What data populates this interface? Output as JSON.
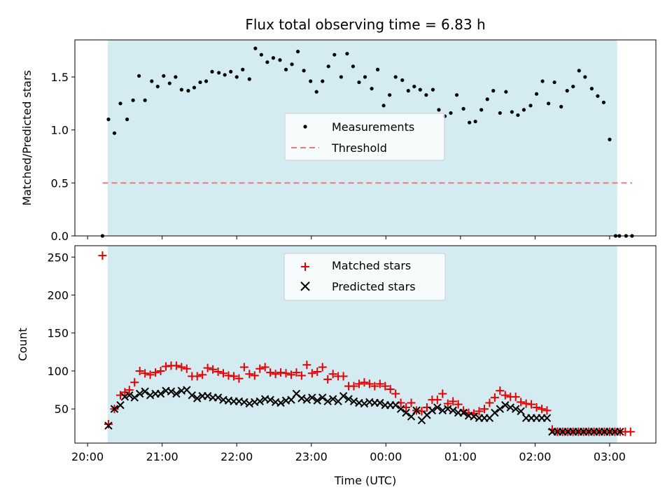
{
  "chart_data": {
    "title": "Flux total observing time = 6.83 h",
    "x_axis": {
      "label": "Time (UTC)",
      "tick_labels": [
        "20:00",
        "21:00",
        "22:00",
        "23:00",
        "00:00",
        "01:00",
        "02:00",
        "03:00"
      ],
      "tick_hours": [
        0,
        1,
        2,
        3,
        4,
        5,
        6,
        7
      ],
      "range_hours_after_20_00": [
        -0.17,
        7.62
      ]
    },
    "shaded_interval_hours_after_20_00": [
      0.27,
      7.1
    ],
    "colors": {
      "shade": "#d3ebf1",
      "measurements": "#000000",
      "threshold": "#f07878",
      "matched": "#e60000",
      "predicted": "#000000"
    },
    "panels": [
      {
        "type": "scatter",
        "ylabel": "Matched/Predicted stars",
        "ylim": [
          0,
          1.85
        ],
        "y_ticks": [
          0.0,
          0.5,
          1.0,
          1.5
        ],
        "y_tick_labels": [
          "0.0",
          "0.5",
          "1.0",
          "1.5"
        ],
        "legend_placement": "center",
        "legend": [
          {
            "label": "Measurements",
            "marker": "dot"
          },
          {
            "label": "Threshold",
            "marker": "dashed-line"
          }
        ],
        "threshold": {
          "value": 0.5,
          "x_range_hours": [
            0.2,
            7.3
          ]
        },
        "series": [
          {
            "name": "Measurements",
            "marker": "dot",
            "x_hours": [
              0.2,
              0.28,
              0.36,
              0.44,
              0.53,
              0.61,
              0.69,
              0.77,
              0.86,
              0.94,
              1.02,
              1.1,
              1.18,
              1.26,
              1.35,
              1.43,
              1.51,
              1.59,
              1.67,
              1.76,
              1.84,
              1.92,
              2.0,
              2.08,
              2.17,
              2.25,
              2.33,
              2.41,
              2.49,
              2.58,
              2.66,
              2.74,
              2.82,
              2.9,
              2.99,
              3.07,
              3.15,
              3.23,
              3.31,
              3.4,
              3.48,
              3.56,
              3.64,
              3.72,
              3.81,
              3.89,
              3.97,
              4.05,
              4.13,
              4.22,
              4.3,
              4.38,
              4.46,
              4.54,
              4.63,
              4.71,
              4.79,
              4.87,
              4.95,
              5.04,
              5.12,
              5.2,
              5.28,
              5.36,
              5.44,
              5.53,
              5.61,
              5.69,
              5.77,
              5.85,
              5.94,
              6.02,
              6.1,
              6.18,
              6.26,
              6.35,
              6.43,
              6.51,
              6.59,
              6.67,
              6.76,
              6.84,
              6.92,
              7.0,
              7.08,
              7.13,
              7.22,
              7.3
            ],
            "y": [
              0.0,
              1.1,
              0.97,
              1.25,
              1.1,
              1.28,
              1.51,
              1.28,
              1.46,
              1.41,
              1.51,
              1.44,
              1.5,
              1.38,
              1.37,
              1.4,
              1.45,
              1.46,
              1.55,
              1.54,
              1.52,
              1.55,
              1.5,
              1.57,
              1.48,
              1.77,
              1.71,
              1.64,
              1.68,
              1.66,
              1.57,
              1.62,
              1.74,
              1.56,
              1.46,
              1.36,
              1.46,
              1.6,
              1.71,
              1.5,
              1.72,
              1.6,
              1.45,
              1.5,
              1.39,
              1.57,
              1.23,
              1.33,
              1.5,
              1.47,
              1.37,
              1.41,
              1.38,
              1.33,
              1.38,
              1.19,
              1.13,
              1.16,
              1.33,
              1.2,
              1.07,
              1.08,
              1.19,
              1.29,
              1.37,
              1.16,
              1.36,
              1.17,
              1.14,
              1.19,
              1.23,
              1.34,
              1.46,
              1.25,
              1.45,
              1.22,
              1.37,
              1.41,
              1.56,
              1.5,
              1.39,
              1.32,
              1.26,
              0.91,
              0.0,
              0.0,
              0.0,
              0.0
            ]
          }
        ]
      },
      {
        "type": "scatter",
        "ylabel": "Count",
        "ylim": [
          5,
          265
        ],
        "y_ticks": [
          50,
          100,
          150,
          200,
          250
        ],
        "y_tick_labels": [
          "50",
          "100",
          "150",
          "200",
          "250"
        ],
        "legend_placement": "upper center",
        "legend": [
          {
            "label": "Matched stars",
            "marker": "plus"
          },
          {
            "label": "Predicted stars",
            "marker": "x"
          }
        ],
        "series": [
          {
            "name": "Matched stars",
            "marker": "plus",
            "x_hours": [
              0.2,
              0.28,
              0.36,
              0.44,
              0.5,
              0.56,
              0.63,
              0.7,
              0.77,
              0.84,
              0.91,
              0.98,
              1.05,
              1.12,
              1.19,
              1.26,
              1.33,
              1.4,
              1.47,
              1.54,
              1.61,
              1.68,
              1.75,
              1.82,
              1.89,
              1.96,
              2.03,
              2.1,
              2.17,
              2.24,
              2.31,
              2.38,
              2.45,
              2.52,
              2.59,
              2.66,
              2.73,
              2.8,
              2.87,
              2.94,
              3.01,
              3.08,
              3.15,
              3.22,
              3.29,
              3.36,
              3.43,
              3.5,
              3.57,
              3.64,
              3.71,
              3.78,
              3.85,
              3.92,
              3.99,
              4.06,
              4.13,
              4.2,
              4.27,
              4.34,
              4.41,
              4.48,
              4.55,
              4.62,
              4.69,
              4.76,
              4.83,
              4.9,
              4.97,
              5.04,
              5.11,
              5.18,
              5.25,
              5.32,
              5.39,
              5.46,
              5.53,
              5.6,
              5.67,
              5.74,
              5.81,
              5.88,
              5.95,
              6.02,
              6.09,
              6.16,
              6.23,
              6.3,
              6.37,
              6.44,
              6.51,
              6.58,
              6.65,
              6.72,
              6.79,
              6.86,
              6.93,
              7.0,
              7.07,
              7.14,
              7.21,
              7.28
            ],
            "y": [
              252,
              30,
              50,
              68,
              72,
              75,
              85,
              100,
              97,
              95,
              98,
              100,
              106,
              107,
              107,
              105,
              103,
              93,
              93,
              95,
              104,
              102,
              99,
              97,
              94,
              93,
              90,
              105,
              96,
              94,
              103,
              105,
              98,
              96,
              98,
              97,
              95,
              98,
              94,
              108,
              97,
              99,
              105,
              89,
              96,
              93,
              93,
              80,
              80,
              83,
              85,
              83,
              80,
              83,
              80,
              76,
              70,
              58,
              52,
              58,
              48,
              47,
              52,
              62,
              62,
              70,
              57,
              60,
              56,
              48,
              45,
              44,
              47,
              50,
              58,
              65,
              74,
              68,
              66,
              66,
              59,
              57,
              56,
              52,
              50,
              48,
              23,
              20,
              20,
              20,
              20,
              20,
              20,
              20,
              20,
              20,
              20,
              20,
              20,
              20,
              20,
              20
            ]
          },
          {
            "name": "Predicted stars",
            "marker": "x",
            "x_hours": [
              0.28,
              0.36,
              0.44,
              0.5,
              0.56,
              0.63,
              0.7,
              0.77,
              0.84,
              0.91,
              0.98,
              1.05,
              1.12,
              1.19,
              1.26,
              1.33,
              1.4,
              1.47,
              1.54,
              1.61,
              1.68,
              1.75,
              1.82,
              1.89,
              1.96,
              2.03,
              2.1,
              2.17,
              2.24,
              2.31,
              2.38,
              2.45,
              2.52,
              2.59,
              2.66,
              2.73,
              2.8,
              2.87,
              2.94,
              3.01,
              3.08,
              3.15,
              3.22,
              3.29,
              3.36,
              3.43,
              3.5,
              3.57,
              3.64,
              3.71,
              3.78,
              3.85,
              3.92,
              3.99,
              4.06,
              4.13,
              4.2,
              4.27,
              4.34,
              4.41,
              4.48,
              4.55,
              4.62,
              4.69,
              4.76,
              4.83,
              4.9,
              4.97,
              5.04,
              5.11,
              5.18,
              5.25,
              5.32,
              5.39,
              5.46,
              5.53,
              5.6,
              5.67,
              5.74,
              5.81,
              5.88,
              5.95,
              6.02,
              6.09,
              6.16,
              6.23,
              6.3,
              6.37,
              6.44,
              6.51,
              6.58,
              6.65,
              6.72,
              6.79,
              6.86,
              6.93,
              7.0,
              7.07,
              7.14
            ],
            "y": [
              28,
              50,
              55,
              66,
              68,
              65,
              70,
              73,
              68,
              70,
              70,
              74,
              73,
              70,
              74,
              75,
              68,
              64,
              67,
              67,
              65,
              65,
              62,
              61,
              60,
              60,
              59,
              57,
              59,
              60,
              63,
              62,
              59,
              58,
              61,
              62,
              70,
              64,
              62,
              65,
              61,
              65,
              60,
              63,
              60,
              67,
              63,
              60,
              58,
              57,
              59,
              58,
              58,
              55,
              55,
              55,
              50,
              45,
              40,
              48,
              35,
              42,
              48,
              52,
              48,
              50,
              48,
              45,
              45,
              41,
              40,
              38,
              38,
              38,
              45,
              50,
              55,
              52,
              50,
              47,
              38,
              38,
              38,
              38,
              38,
              20,
              20,
              20,
              20,
              20,
              20,
              20,
              20,
              20,
              20,
              20,
              20,
              20,
              20
            ]
          }
        ]
      }
    ]
  }
}
